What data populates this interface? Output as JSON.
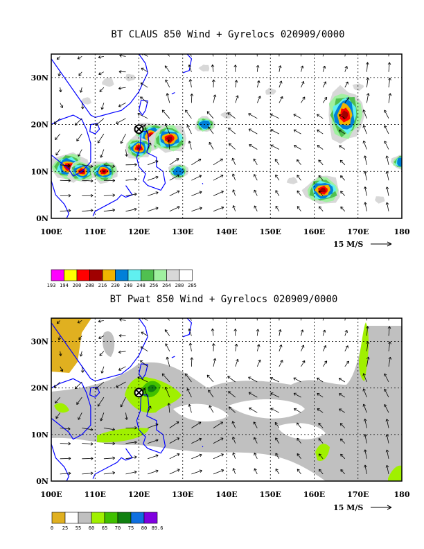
{
  "chart_data": [
    {
      "type": "heatmap",
      "title": "BT CLAUS 850 Wind + Gyrelocs 020909/0000",
      "field": "brightness temperature",
      "x_ticks": [
        "100E",
        "110E",
        "120E",
        "130E",
        "140E",
        "150E",
        "160E",
        "170E",
        "180"
      ],
      "y_ticks": [
        "0N",
        "10N",
        "20N",
        "30N"
      ],
      "xlim": [
        100,
        180
      ],
      "ylim": [
        0,
        35
      ],
      "grid": true,
      "vector_scale_label": "15 M/S",
      "gyre_location": {
        "lon": 120,
        "lat": 19
      },
      "colorbar": {
        "labels": [
          "193",
          "194",
          "200",
          "208",
          "216",
          "230",
          "240",
          "248",
          "256",
          "264",
          "280",
          "285"
        ],
        "colors": [
          "#ff00ff",
          "#ffff00",
          "#ff0000",
          "#a00000",
          "#f0b400",
          "#0080d8",
          "#60f0f0",
          "#50c050",
          "#a0f0a0",
          "#d8d8d8",
          "#ffffff"
        ]
      },
      "features": [
        {
          "lon": 123,
          "lat": 17.5,
          "level": 3
        },
        {
          "lon": 127,
          "lat": 17,
          "level": 3
        },
        {
          "lon": 120,
          "lat": 15,
          "level": 2
        },
        {
          "lon": 104,
          "lat": 11,
          "level": 3
        },
        {
          "lon": 107,
          "lat": 10,
          "level": 2
        },
        {
          "lon": 112,
          "lat": 10,
          "level": 2
        },
        {
          "lon": 162,
          "lat": 6,
          "level": 3
        },
        {
          "lon": 167,
          "lat": 22,
          "level": 3
        },
        {
          "lon": 180,
          "lat": 12,
          "level": 1
        },
        {
          "lon": 135,
          "lat": 20,
          "level": 1
        },
        {
          "lon": 129,
          "lat": 10,
          "level": 1
        },
        {
          "lon": 113,
          "lat": 29,
          "level": 0
        }
      ]
    },
    {
      "type": "heatmap",
      "title": "BT Pwat 850 Wind + Gyrelocs 020909/0000",
      "field": "precipitable water",
      "x_ticks": [
        "100E",
        "110E",
        "120E",
        "130E",
        "140E",
        "150E",
        "160E",
        "170E",
        "180"
      ],
      "y_ticks": [
        "0N",
        "10N",
        "20N",
        "30N"
      ],
      "xlim": [
        100,
        180
      ],
      "ylim": [
        0,
        35
      ],
      "grid": true,
      "vector_scale_label": "15 M/S",
      "gyre_location": {
        "lon": 120,
        "lat": 19
      },
      "colorbar": {
        "labels": [
          "0",
          "25",
          "55",
          "60",
          "65",
          "70",
          "75",
          "80",
          "89.6"
        ],
        "colors": [
          "#e0b020",
          "#ffffff",
          "#c0c0c0",
          "#a0f000",
          "#40c000",
          "#108010",
          "#1070e0",
          "#8000e0"
        ]
      }
    }
  ]
}
